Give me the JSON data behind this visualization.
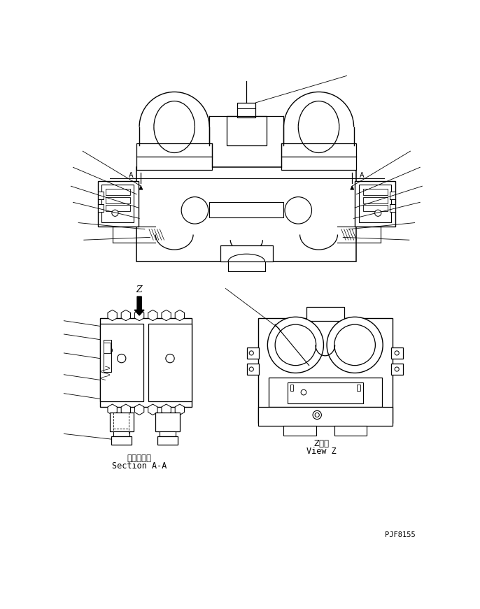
{
  "bg_color": "#ffffff",
  "line_color": "#000000",
  "fig_width": 6.86,
  "fig_height": 8.71,
  "dpi": 100,
  "part_number": "PJF8155",
  "label_section_aa_jp": "断面Ａ－Ａ",
  "label_section_aa_en": "Section A-A",
  "label_view_z_jp": "Z　視",
  "label_view_z_en": "View Z"
}
